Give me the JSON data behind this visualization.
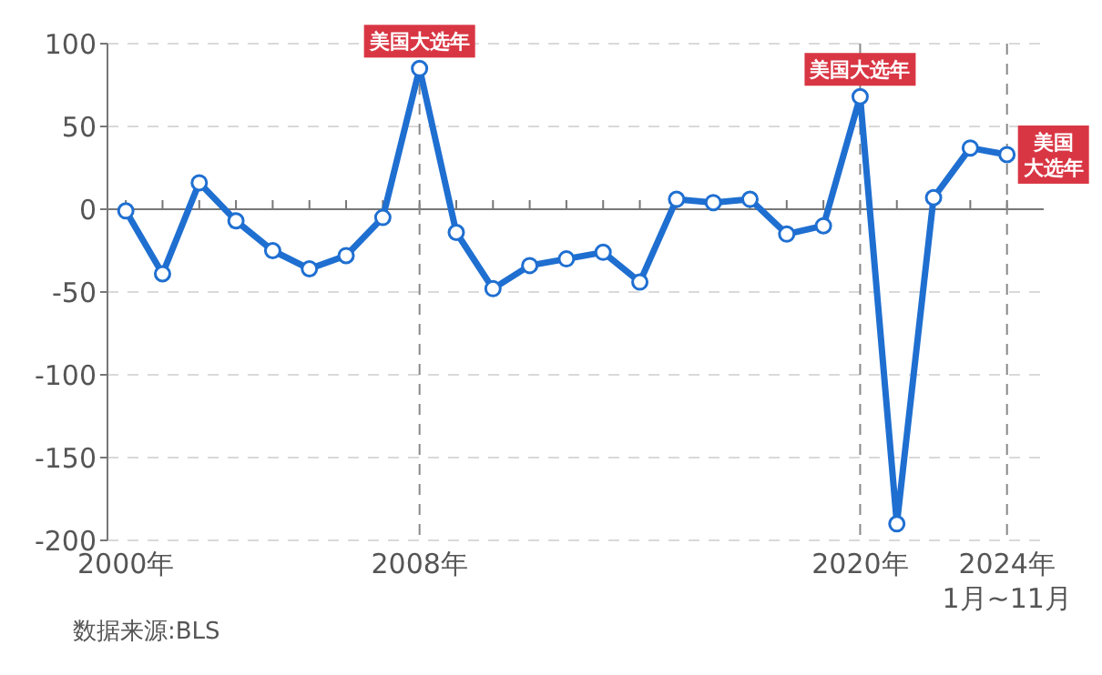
{
  "chart_data": {
    "type": "line",
    "x": [
      2000,
      2001,
      2002,
      2003,
      2004,
      2005,
      2006,
      2007,
      2008,
      2009,
      2010,
      2011,
      2012,
      2013,
      2014,
      2015,
      2016,
      2017,
      2018,
      2019,
      2020,
      2021,
      2022,
      2023,
      2024
    ],
    "series": [
      {
        "color": "#1f6fd1",
        "values": [
          -1,
          -39,
          16,
          -7,
          -25,
          -36,
          -28,
          -5,
          85,
          -14,
          -48,
          -34,
          -30,
          -26,
          -44,
          6,
          4,
          6,
          -15,
          -10,
          68,
          -190,
          7,
          37,
          33
        ]
      }
    ],
    "xlim": [
      1999.5,
      2025
    ],
    "xticks": [
      {
        "value": 2000,
        "label": "2000年"
      },
      {
        "value": 2001,
        "label": null
      },
      {
        "value": 2002,
        "label": null
      },
      {
        "value": 2003,
        "label": null
      },
      {
        "value": 2004,
        "label": null
      },
      {
        "value": 2005,
        "label": null
      },
      {
        "value": 2006,
        "label": null
      },
      {
        "value": 2007,
        "label": null
      },
      {
        "value": 2008,
        "label": "2008年"
      },
      {
        "value": 2009,
        "label": null
      },
      {
        "value": 2010,
        "label": null
      },
      {
        "value": 2011,
        "label": null
      },
      {
        "value": 2012,
        "label": null
      },
      {
        "value": 2013,
        "label": null
      },
      {
        "value": 2014,
        "label": null
      },
      {
        "value": 2015,
        "label": null
      },
      {
        "value": 2016,
        "label": null
      },
      {
        "value": 2017,
        "label": null
      },
      {
        "value": 2018,
        "label": null
      },
      {
        "value": 2019,
        "label": null
      },
      {
        "value": 2020,
        "label": "2020年"
      },
      {
        "value": 2021,
        "label": null
      },
      {
        "value": 2022,
        "label": null
      },
      {
        "value": 2023,
        "label": null
      },
      {
        "value": 2024,
        "label": "2024年\n1月~11月"
      }
    ],
    "ylim": [
      -200,
      100
    ],
    "yticks": [
      -200,
      -150,
      -100,
      -50,
      0,
      50,
      100
    ],
    "grid": "y",
    "marker": "circle",
    "line_style": "solid",
    "ref_lines": [
      {
        "axis": "x",
        "value": 2008,
        "label": "美国大选年",
        "color": "#888888",
        "line_style": "dashed"
      },
      {
        "axis": "x",
        "value": 2020,
        "label": "美国大选年",
        "color": "#888888",
        "line_style": "dashed"
      },
      {
        "axis": "x",
        "value": 2024,
        "label": "美国大选年",
        "color": "#888888",
        "line_style": "dashed"
      }
    ],
    "annotations": [
      "数据来源:BLS"
    ]
  }
}
